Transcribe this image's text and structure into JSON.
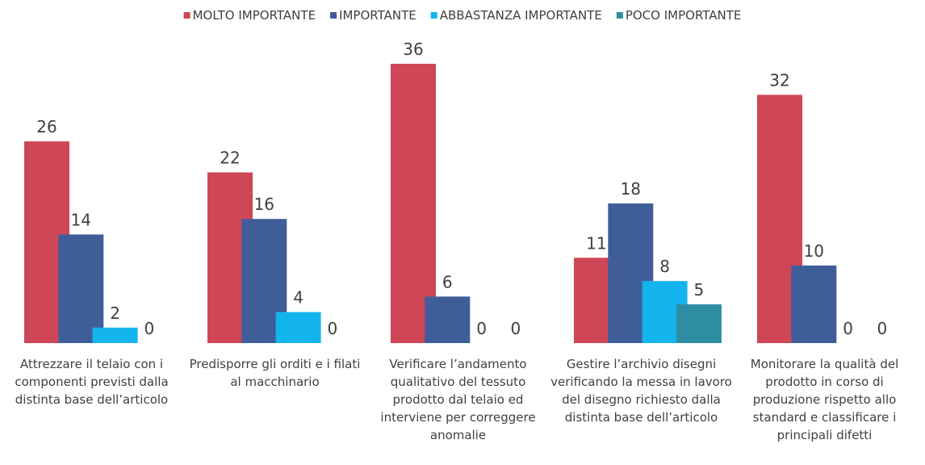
{
  "chart_data": {
    "type": "bar",
    "categories": [
      "Attrezzare il telaio con i componenti previsti dalla distinta base dell’articolo",
      "Predisporre gli orditi e i filati al macchinario",
      "Verificare l’andamento qualitativo del tessuto prodotto dal telaio ed interviene per correggere anomalie",
      "Gestire l’archivio disegni verificando la messa in lavoro del disegno richiesto dalla distinta base dell’articolo",
      "Monitorare la qualità del prodotto in corso di produzione rispetto allo standard e classificare i principali difetti"
    ],
    "series": [
      {
        "name": "MOLTO IMPORTANTE",
        "color": "#cf4656",
        "values": [
          26,
          22,
          36,
          11,
          32
        ]
      },
      {
        "name": "IMPORTANTE",
        "color": "#3f5e99",
        "values": [
          14,
          16,
          6,
          18,
          10
        ]
      },
      {
        "name": "ABBASTANZA IMPORTANTE",
        "color": "#14b4ee",
        "values": [
          2,
          4,
          0,
          8,
          0
        ]
      },
      {
        "name": "POCO IMPORTANTE",
        "color": "#2e8da3",
        "values": [
          0,
          0,
          0,
          5,
          0
        ]
      }
    ],
    "legend": "top"
  }
}
